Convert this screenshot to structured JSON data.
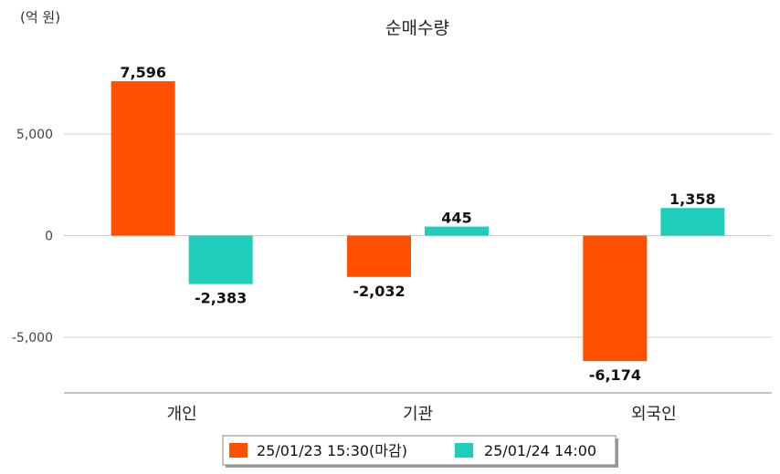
{
  "chart_data": {
    "type": "bar",
    "title": "순매수량",
    "unit_label": "(억 원)",
    "categories": [
      "개인",
      "기관",
      "외국인"
    ],
    "series": [
      {
        "name": "25/01/23 15:30(마감)",
        "color": "#FF5000",
        "values": [
          7596,
          -2032,
          -6174
        ],
        "value_labels": [
          "7,596",
          "-2,032",
          "-6,174"
        ]
      },
      {
        "name": "25/01/24 14:00",
        "color": "#1ECDBA",
        "values": [
          -2383,
          445,
          1358
        ],
        "value_labels": [
          "-2,383",
          "445",
          "1,358"
        ]
      }
    ],
    "y_ticks": [
      5000,
      0,
      -5000
    ],
    "y_tick_labels": [
      "5,000",
      "0",
      "-5,000"
    ],
    "ylim": [
      -7500,
      9500
    ],
    "grid": true,
    "legend_position": "bottom"
  }
}
